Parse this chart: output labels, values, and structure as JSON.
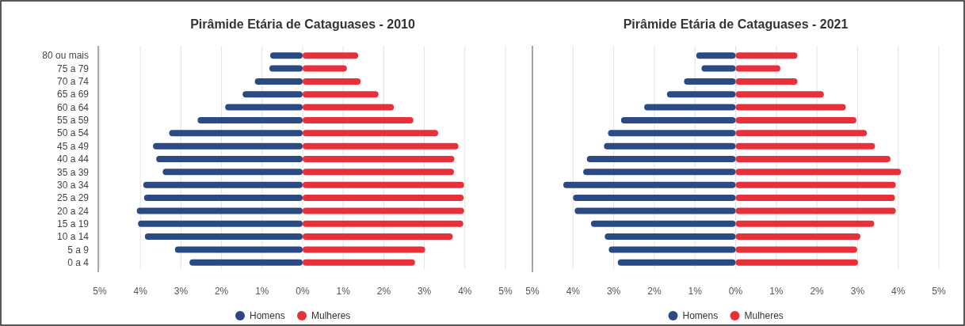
{
  "chart_data": [
    {
      "type": "bar",
      "orientation": "horizontal",
      "title": "Pirâmide Etária de Cataguases - 2010",
      "categories": [
        "80 ou mais",
        "75 a 79",
        "70 a 74",
        "65 a 69",
        "60 a 64",
        "55 a 59",
        "50 a 54",
        "45 a 49",
        "40 a 44",
        "35 a 39",
        "30 a 34",
        "25 a 29",
        "20 a 24",
        "15 a 19",
        "10 a 14",
        "5 a 9",
        "0 a 4"
      ],
      "series": [
        {
          "name": "Homens",
          "color": "#2b4a84",
          "values": [
            -0.8,
            -0.82,
            -1.18,
            -1.48,
            -1.91,
            -2.59,
            -3.29,
            -3.69,
            -3.61,
            -3.45,
            -3.93,
            -3.91,
            -4.09,
            -4.06,
            -3.89,
            -3.15,
            -2.79
          ]
        },
        {
          "name": "Mulheres",
          "color": "#e8303a",
          "values": [
            1.37,
            1.09,
            1.43,
            1.87,
            2.25,
            2.73,
            3.34,
            3.84,
            3.74,
            3.73,
            3.98,
            3.97,
            3.98,
            3.96,
            3.7,
            3.02,
            2.77
          ]
        }
      ],
      "xlim": [
        -5,
        5
      ],
      "xticks": [
        {
          "value": -5,
          "label": "5%"
        },
        {
          "value": -4,
          "label": "4%"
        },
        {
          "value": -3,
          "label": "3%"
        },
        {
          "value": -2,
          "label": "2%"
        },
        {
          "value": -1,
          "label": "1%"
        },
        {
          "value": 0,
          "label": "0%"
        },
        {
          "value": 1,
          "label": "1%"
        },
        {
          "value": 2,
          "label": "2%"
        },
        {
          "value": 3,
          "label": "3%"
        },
        {
          "value": 4,
          "label": "4%"
        },
        {
          "value": 5,
          "label": "5%"
        }
      ],
      "grid": "x",
      "legend": "bottom",
      "stacked": true
    },
    {
      "type": "bar",
      "orientation": "horizontal",
      "title": "Pirâmide Etária de Cataguases - 2021",
      "categories": [
        null,
        null,
        null,
        null,
        null,
        null,
        null,
        null,
        null,
        null,
        null,
        null,
        null,
        null,
        null,
        null,
        null
      ],
      "series": [
        {
          "name": "Homens",
          "color": "#2b4a84",
          "values": [
            -0.97,
            -0.84,
            -1.27,
            -1.69,
            -2.25,
            -2.82,
            -3.14,
            -3.24,
            -3.66,
            -3.75,
            -4.24,
            -4.0,
            -3.96,
            -3.56,
            -3.22,
            -3.12,
            -2.9
          ]
        },
        {
          "name": "Mulheres",
          "color": "#e8303a",
          "values": [
            1.52,
            1.1,
            1.52,
            2.17,
            2.71,
            2.97,
            3.23,
            3.43,
            3.81,
            4.07,
            3.94,
            3.92,
            3.94,
            3.41,
            3.07,
            2.99,
            3.01
          ]
        }
      ],
      "xlim": [
        -5,
        5
      ],
      "xticks": [
        {
          "value": -5,
          "label": "5%"
        },
        {
          "value": -4,
          "label": "4%"
        },
        {
          "value": -3,
          "label": "3%"
        },
        {
          "value": -2,
          "label": "2%"
        },
        {
          "value": -1,
          "label": "1%"
        },
        {
          "value": 0,
          "label": "0%"
        },
        {
          "value": 1,
          "label": "1%"
        },
        {
          "value": 2,
          "label": "2%"
        },
        {
          "value": 3,
          "label": "3%"
        },
        {
          "value": 4,
          "label": "4%"
        },
        {
          "value": 5,
          "label": "5%"
        }
      ],
      "grid": "x",
      "legend": "bottom",
      "stacked": true
    }
  ]
}
